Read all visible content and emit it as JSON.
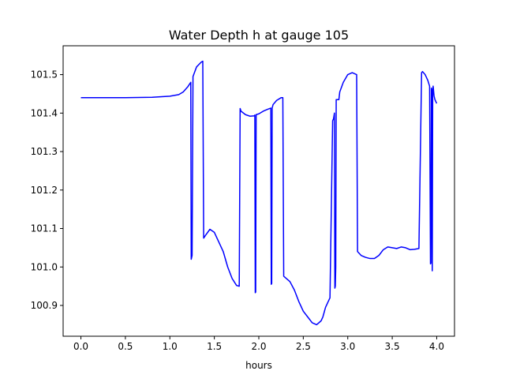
{
  "chart_data": {
    "type": "line",
    "title": "Water Depth h at gauge 105",
    "xlabel": "hours",
    "ylabel": "",
    "xlim": [
      -0.2,
      4.2
    ],
    "ylim": [
      100.82,
      101.575
    ],
    "x_ticks": [
      0.0,
      0.5,
      1.0,
      1.5,
      2.0,
      2.5,
      3.0,
      3.5,
      4.0
    ],
    "x_tick_labels": [
      "0.0",
      "0.5",
      "1.0",
      "1.5",
      "2.0",
      "2.5",
      "3.0",
      "3.5",
      "4.0"
    ],
    "y_ticks": [
      100.9,
      101.0,
      101.1,
      101.2,
      101.3,
      101.4,
      101.5
    ],
    "y_tick_labels": [
      "100.9",
      "101.0",
      "101.1",
      "101.2",
      "101.3",
      "101.4",
      "101.5"
    ],
    "grid": false,
    "legend": "none",
    "series": [
      {
        "color": "#0000ff",
        "x": [
          0.0,
          0.5,
          0.8,
          1.0,
          1.1,
          1.15,
          1.2,
          1.235,
          1.24,
          1.25,
          1.26,
          1.3,
          1.35,
          1.37,
          1.38,
          1.4,
          1.45,
          1.5,
          1.55,
          1.6,
          1.65,
          1.7,
          1.75,
          1.78,
          1.79,
          1.8,
          1.85,
          1.9,
          1.95,
          1.955,
          1.96,
          1.965,
          1.97,
          2.0,
          2.05,
          2.1,
          2.135,
          2.14,
          2.145,
          2.15,
          2.16,
          2.2,
          2.25,
          2.27,
          2.28,
          2.3,
          2.35,
          2.4,
          2.45,
          2.5,
          2.55,
          2.6,
          2.65,
          2.7,
          2.72,
          2.75,
          2.8,
          2.83,
          2.84,
          2.85,
          2.855,
          2.86,
          2.865,
          2.87,
          2.9,
          2.91,
          2.95,
          3.0,
          3.05,
          3.1,
          3.11,
          3.15,
          3.2,
          3.25,
          3.3,
          3.35,
          3.4,
          3.45,
          3.5,
          3.55,
          3.6,
          3.65,
          3.7,
          3.75,
          3.8,
          3.83,
          3.84,
          3.87,
          3.9,
          3.92,
          3.93,
          3.935,
          3.94,
          3.945,
          3.95,
          3.955,
          3.96,
          3.97,
          3.98,
          4.0
        ],
        "y": [
          101.44,
          101.44,
          101.441,
          101.444,
          101.448,
          101.455,
          101.468,
          101.48,
          101.02,
          101.03,
          101.495,
          101.52,
          101.532,
          101.535,
          101.075,
          101.082,
          101.098,
          101.09,
          101.065,
          101.04,
          101.0,
          100.97,
          100.952,
          100.95,
          101.412,
          101.405,
          101.396,
          101.392,
          101.393,
          101.395,
          100.933,
          100.935,
          101.396,
          101.398,
          101.405,
          101.41,
          101.413,
          100.955,
          100.957,
          101.413,
          101.422,
          101.433,
          101.44,
          101.44,
          100.976,
          100.972,
          100.962,
          100.94,
          100.91,
          100.885,
          100.87,
          100.855,
          100.85,
          100.86,
          100.87,
          100.895,
          100.92,
          101.38,
          101.385,
          101.4,
          100.945,
          100.95,
          101.0,
          101.435,
          101.435,
          101.455,
          101.48,
          101.5,
          101.505,
          101.5,
          101.04,
          101.03,
          101.025,
          101.022,
          101.022,
          101.03,
          101.045,
          101.052,
          101.05,
          101.048,
          101.052,
          101.05,
          101.045,
          101.046,
          101.048,
          101.505,
          101.508,
          101.5,
          101.485,
          101.47,
          101.008,
          101.01,
          101.465,
          101.455,
          100.99,
          101.46,
          101.47,
          101.445,
          101.435,
          101.425
        ]
      }
    ]
  }
}
